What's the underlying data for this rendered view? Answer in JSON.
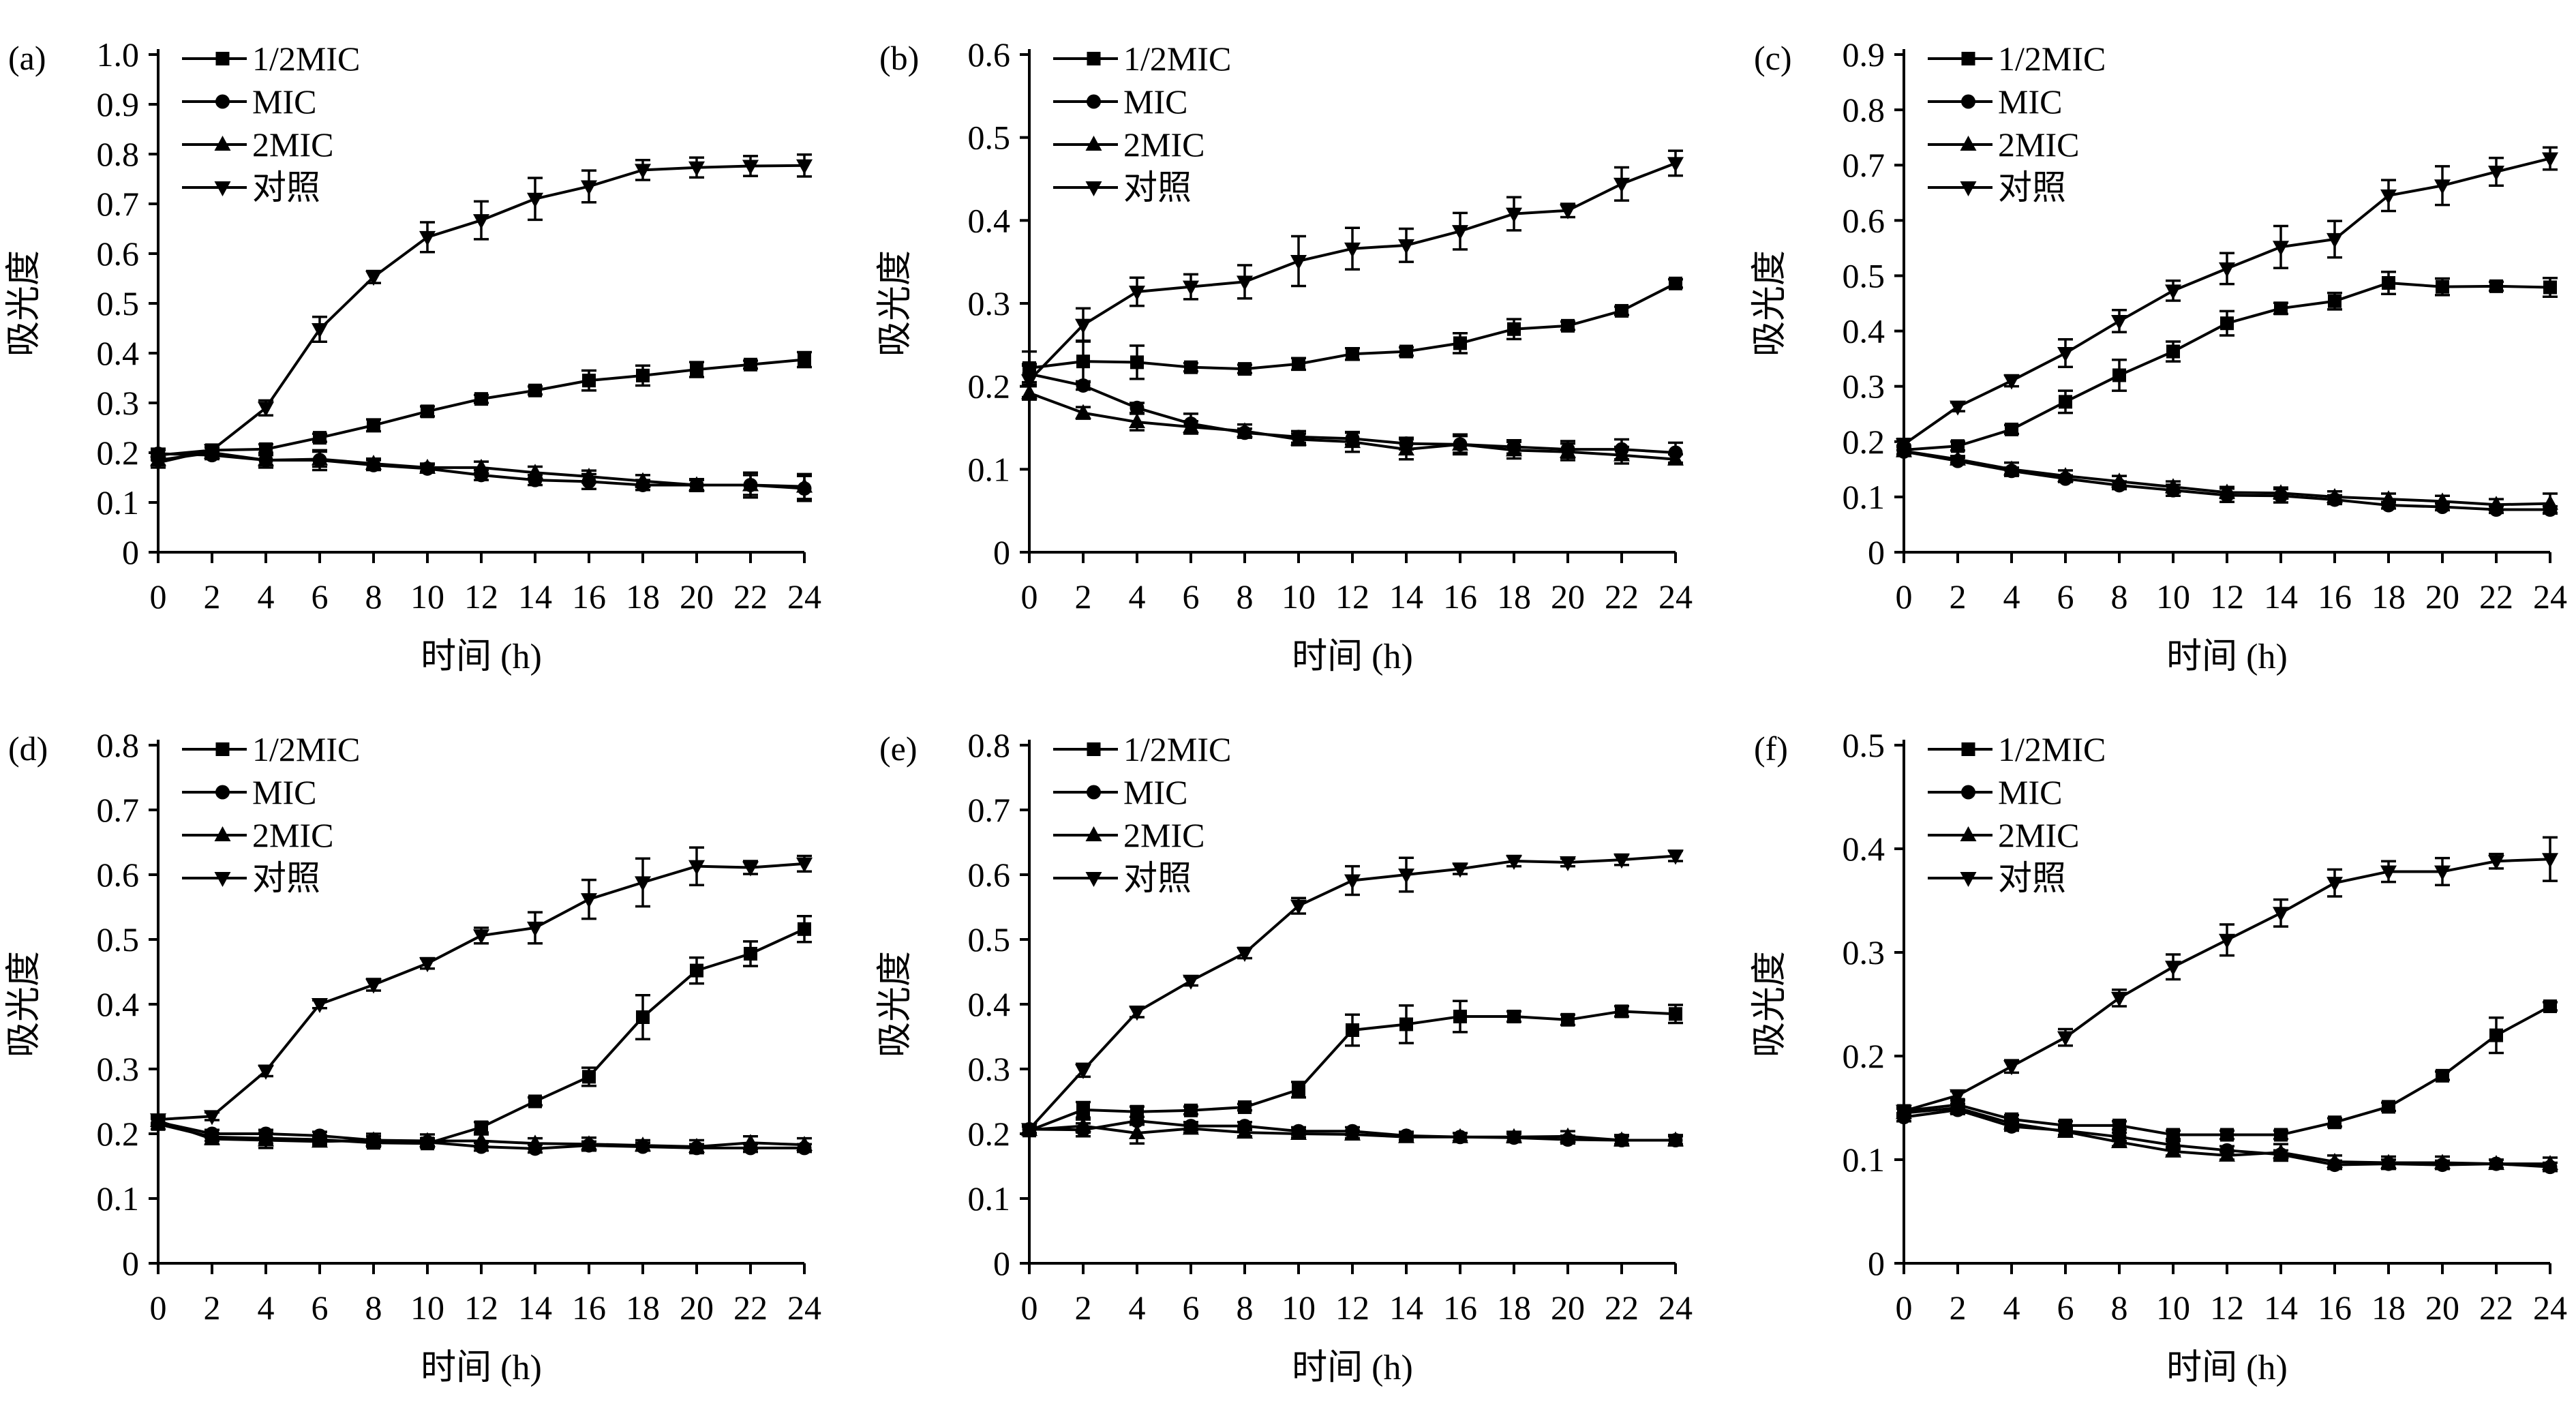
{
  "chart_data": [
    {
      "type": "line",
      "panel_label": "(a)",
      "xlabel": "时间 (h)",
      "ylabel": "吸光度",
      "x": [
        0,
        2,
        4,
        6,
        8,
        10,
        12,
        14,
        16,
        18,
        20,
        22,
        24
      ],
      "xticks": [
        "0",
        "2",
        "4",
        "6",
        "8",
        "10",
        "12",
        "14",
        "16",
        "18",
        "20",
        "22",
        "24"
      ],
      "ylim": [
        0,
        1.0
      ],
      "yticks": [
        "0",
        "0.1",
        "0.2",
        "0.3",
        "0.4",
        "0.5",
        "0.6",
        "0.7",
        "0.8",
        "0.9",
        "1.0"
      ],
      "legend_position": "top-left",
      "series": [
        {
          "name": "1/2MIC",
          "marker": "square",
          "values": [
            0.195,
            0.205,
            0.207,
            0.23,
            0.255,
            0.283,
            0.308,
            0.325,
            0.345,
            0.355,
            0.367,
            0.377,
            0.387
          ],
          "errors": [
            0.01,
            0.01,
            0.01,
            0.008,
            0.012,
            0.01,
            0.008,
            0.008,
            0.02,
            0.02,
            0.015,
            0.008,
            0.015
          ]
        },
        {
          "name": "MIC",
          "marker": "circle",
          "values": [
            0.198,
            0.195,
            0.185,
            0.185,
            0.175,
            0.168,
            0.155,
            0.145,
            0.142,
            0.135,
            0.135,
            0.135,
            0.128
          ],
          "errors": [
            0.01,
            0.008,
            0.015,
            0.02,
            0.01,
            0.008,
            0.01,
            0.01,
            0.015,
            0.01,
            0.01,
            0.02,
            0.025
          ]
        },
        {
          "name": "2MIC",
          "marker": "triangle-up",
          "values": [
            0.185,
            0.2,
            0.185,
            0.187,
            0.178,
            0.17,
            0.17,
            0.16,
            0.152,
            0.143,
            0.135,
            0.135,
            0.132
          ],
          "errors": [
            0.01,
            0.01,
            0.01,
            0.015,
            0.01,
            0.008,
            0.012,
            0.012,
            0.012,
            0.012,
            0.012,
            0.025,
            0.025
          ]
        },
        {
          "name": "对照",
          "marker": "triangle-down",
          "values": [
            0.18,
            0.205,
            0.29,
            0.448,
            0.553,
            0.633,
            0.667,
            0.71,
            0.735,
            0.768,
            0.773,
            0.776,
            0.777
          ],
          "errors": [
            0.01,
            0.01,
            0.015,
            0.025,
            0.012,
            0.03,
            0.038,
            0.042,
            0.032,
            0.02,
            0.02,
            0.02,
            0.022
          ]
        }
      ]
    },
    {
      "type": "line",
      "panel_label": "(b)",
      "xlabel": "时间 (h)",
      "ylabel": "吸光度",
      "x": [
        0,
        2,
        4,
        6,
        8,
        10,
        12,
        14,
        16,
        18,
        20,
        22,
        24
      ],
      "xticks": [
        "0",
        "2",
        "4",
        "6",
        "8",
        "10",
        "12",
        "14",
        "16",
        "18",
        "20",
        "22",
        "24"
      ],
      "ylim": [
        0,
        0.6
      ],
      "yticks": [
        "0",
        "0.1",
        "0.2",
        "0.3",
        "0.4",
        "0.5",
        "0.6"
      ],
      "legend_position": "top-left",
      "series": [
        {
          "name": "1/2MIC",
          "marker": "square",
          "values": [
            0.222,
            0.23,
            0.229,
            0.223,
            0.221,
            0.227,
            0.239,
            0.242,
            0.252,
            0.269,
            0.273,
            0.291,
            0.324
          ],
          "errors": [
            0.02,
            0.025,
            0.02,
            0.005,
            0.005,
            0.007,
            0.007,
            0.005,
            0.012,
            0.012,
            0.005,
            0.005,
            0.005
          ]
        },
        {
          "name": "MIC",
          "marker": "circle",
          "values": [
            0.215,
            0.201,
            0.174,
            0.155,
            0.144,
            0.139,
            0.137,
            0.131,
            0.13,
            0.127,
            0.124,
            0.124,
            0.12
          ],
          "errors": [
            0.01,
            0.005,
            0.006,
            0.012,
            0.005,
            0.007,
            0.007,
            0.007,
            0.01,
            0.008,
            0.01,
            0.012,
            0.012
          ]
        },
        {
          "name": "2MIC",
          "marker": "triangle-up",
          "values": [
            0.192,
            0.168,
            0.157,
            0.151,
            0.146,
            0.136,
            0.133,
            0.124,
            0.13,
            0.123,
            0.121,
            0.117,
            0.112
          ],
          "errors": [
            0.008,
            0.007,
            0.01,
            0.007,
            0.008,
            0.007,
            0.012,
            0.012,
            0.012,
            0.01,
            0.01,
            0.01,
            0.006
          ]
        },
        {
          "name": "对照",
          "marker": "triangle-down",
          "values": [
            0.207,
            0.274,
            0.314,
            0.32,
            0.326,
            0.351,
            0.366,
            0.37,
            0.387,
            0.408,
            0.412,
            0.444,
            0.469
          ],
          "errors": [
            0.02,
            0.02,
            0.017,
            0.015,
            0.02,
            0.03,
            0.025,
            0.02,
            0.022,
            0.02,
            0.008,
            0.02,
            0.015
          ]
        }
      ]
    },
    {
      "type": "line",
      "panel_label": "(c)",
      "xlabel": "时间 (h)",
      "ylabel": "吸光度",
      "x": [
        0,
        2,
        4,
        6,
        8,
        10,
        12,
        14,
        16,
        18,
        20,
        22,
        24
      ],
      "xticks": [
        "0",
        "2",
        "4",
        "6",
        "8",
        "10",
        "12",
        "14",
        "16",
        "18",
        "20",
        "22",
        "24"
      ],
      "ylim": [
        0,
        0.9
      ],
      "yticks": [
        "0",
        "0.1",
        "0.2",
        "0.3",
        "0.4",
        "0.5",
        "0.6",
        "0.7",
        "0.8",
        "0.9"
      ],
      "legend_position": "top-left",
      "series": [
        {
          "name": "1/2MIC",
          "marker": "square",
          "values": [
            0.185,
            0.192,
            0.222,
            0.272,
            0.32,
            0.363,
            0.414,
            0.441,
            0.454,
            0.487,
            0.48,
            0.481,
            0.479
          ],
          "errors": [
            0.008,
            0.008,
            0.008,
            0.02,
            0.028,
            0.018,
            0.022,
            0.01,
            0.015,
            0.02,
            0.015,
            0.008,
            0.017
          ]
        },
        {
          "name": "MIC",
          "marker": "circle",
          "values": [
            0.182,
            0.165,
            0.147,
            0.133,
            0.121,
            0.112,
            0.103,
            0.102,
            0.095,
            0.085,
            0.082,
            0.077,
            0.077
          ],
          "errors": [
            0.008,
            0.006,
            0.006,
            0.006,
            0.007,
            0.01,
            0.012,
            0.012,
            0.008,
            0.006,
            0.006,
            0.006,
            0.006
          ]
        },
        {
          "name": "2MIC",
          "marker": "triangle-up",
          "values": [
            0.183,
            0.168,
            0.15,
            0.138,
            0.128,
            0.118,
            0.108,
            0.107,
            0.1,
            0.096,
            0.092,
            0.086,
            0.088
          ],
          "errors": [
            0.008,
            0.006,
            0.012,
            0.01,
            0.01,
            0.01,
            0.01,
            0.01,
            0.01,
            0.01,
            0.01,
            0.01,
            0.018
          ]
        },
        {
          "name": "对照",
          "marker": "triangle-down",
          "values": [
            0.195,
            0.263,
            0.31,
            0.36,
            0.418,
            0.473,
            0.513,
            0.552,
            0.566,
            0.645,
            0.663,
            0.688,
            0.712
          ],
          "errors": [
            0.01,
            0.008,
            0.01,
            0.025,
            0.02,
            0.018,
            0.028,
            0.038,
            0.033,
            0.028,
            0.035,
            0.025,
            0.02
          ]
        }
      ]
    },
    {
      "type": "line",
      "panel_label": "(d)",
      "xlabel": "时间 (h)",
      "ylabel": "吸光度",
      "x": [
        0,
        2,
        4,
        6,
        8,
        10,
        12,
        14,
        16,
        18,
        20,
        22,
        24
      ],
      "xticks": [
        "0",
        "2",
        "4",
        "6",
        "8",
        "10",
        "12",
        "14",
        "16",
        "18",
        "20",
        "22",
        "24"
      ],
      "ylim": [
        0,
        0.8
      ],
      "yticks": [
        "0",
        "0.1",
        "0.2",
        "0.3",
        "0.4",
        "0.5",
        "0.6",
        "0.7",
        "0.8"
      ],
      "legend_position": "top-left",
      "series": [
        {
          "name": "1/2MIC",
          "marker": "square",
          "values": [
            0.215,
            0.195,
            0.193,
            0.191,
            0.186,
            0.185,
            0.21,
            0.25,
            0.288,
            0.38,
            0.452,
            0.478,
            0.516
          ],
          "errors": [
            0.008,
            0.006,
            0.008,
            0.006,
            0.006,
            0.006,
            0.008,
            0.006,
            0.014,
            0.034,
            0.02,
            0.019,
            0.02
          ]
        },
        {
          "name": "MIC",
          "marker": "circle",
          "values": [
            0.218,
            0.2,
            0.2,
            0.197,
            0.19,
            0.187,
            0.18,
            0.177,
            0.182,
            0.18,
            0.178,
            0.178,
            0.178
          ],
          "errors": [
            0.006,
            0.006,
            0.006,
            0.006,
            0.006,
            0.006,
            0.006,
            0.006,
            0.006,
            0.006,
            0.006,
            0.006,
            0.006
          ]
        },
        {
          "name": "2MIC",
          "marker": "triangle-up",
          "values": [
            0.22,
            0.192,
            0.19,
            0.188,
            0.19,
            0.189,
            0.189,
            0.185,
            0.184,
            0.182,
            0.18,
            0.186,
            0.183
          ],
          "errors": [
            0.006,
            0.008,
            0.012,
            0.006,
            0.01,
            0.01,
            0.01,
            0.008,
            0.01,
            0.008,
            0.01,
            0.01,
            0.01
          ]
        },
        {
          "name": "对照",
          "marker": "triangle-down",
          "values": [
            0.222,
            0.227,
            0.297,
            0.4,
            0.43,
            0.463,
            0.506,
            0.518,
            0.562,
            0.588,
            0.613,
            0.611,
            0.617
          ],
          "errors": [
            0.006,
            0.006,
            0.008,
            0.006,
            0.009,
            0.008,
            0.012,
            0.024,
            0.03,
            0.037,
            0.029,
            0.01,
            0.012
          ]
        }
      ]
    },
    {
      "type": "line",
      "panel_label": "(e)",
      "xlabel": "时间 (h)",
      "ylabel": "吸光度",
      "x": [
        0,
        2,
        4,
        6,
        8,
        10,
        12,
        14,
        16,
        18,
        20,
        22,
        24
      ],
      "xticks": [
        "0",
        "2",
        "4",
        "6",
        "8",
        "10",
        "12",
        "14",
        "16",
        "18",
        "20",
        "22",
        "24"
      ],
      "ylim": [
        0,
        0.8
      ],
      "yticks": [
        "0",
        "0.1",
        "0.2",
        "0.3",
        "0.4",
        "0.5",
        "0.6",
        "0.7",
        "0.8"
      ],
      "legend_position": "top-left",
      "series": [
        {
          "name": "1/2MIC",
          "marker": "square",
          "values": [
            0.205,
            0.237,
            0.234,
            0.236,
            0.241,
            0.268,
            0.36,
            0.369,
            0.381,
            0.381,
            0.376,
            0.389,
            0.385
          ],
          "errors": [
            0.006,
            0.012,
            0.008,
            0.006,
            0.005,
            0.012,
            0.024,
            0.029,
            0.024,
            0.008,
            0.008,
            0.008,
            0.014
          ]
        },
        {
          "name": "MIC",
          "marker": "circle",
          "values": [
            0.207,
            0.206,
            0.22,
            0.212,
            0.212,
            0.204,
            0.204,
            0.197,
            0.195,
            0.194,
            0.191,
            0.19,
            0.19
          ],
          "errors": [
            0.006,
            0.01,
            0.006,
            0.006,
            0.006,
            0.006,
            0.006,
            0.006,
            0.006,
            0.006,
            0.006,
            0.006,
            0.006
          ]
        },
        {
          "name": "2MIC",
          "marker": "triangle-up",
          "values": [
            0.206,
            0.212,
            0.201,
            0.208,
            0.202,
            0.2,
            0.199,
            0.195,
            0.195,
            0.195,
            0.196,
            0.19,
            0.19
          ],
          "errors": [
            0.006,
            0.01,
            0.016,
            0.006,
            0.006,
            0.006,
            0.006,
            0.006,
            0.006,
            0.008,
            0.008,
            0.008,
            0.008
          ]
        },
        {
          "name": "对照",
          "marker": "triangle-down",
          "values": [
            0.207,
            0.298,
            0.388,
            0.436,
            0.479,
            0.552,
            0.591,
            0.6,
            0.609,
            0.621,
            0.619,
            0.623,
            0.629
          ],
          "errors": [
            0.006,
            0.01,
            0.008,
            0.007,
            0.008,
            0.012,
            0.022,
            0.026,
            0.008,
            0.008,
            0.006,
            0.008,
            0.008
          ]
        }
      ]
    },
    {
      "type": "line",
      "panel_label": "(f)",
      "xlabel": "时间 (h)",
      "ylabel": "吸光度",
      "x": [
        0,
        2,
        4,
        6,
        8,
        10,
        12,
        14,
        16,
        18,
        20,
        22,
        24
      ],
      "xticks": [
        "0",
        "2",
        "4",
        "6",
        "8",
        "10",
        "12",
        "14",
        "16",
        "18",
        "20",
        "22",
        "24"
      ],
      "ylim": [
        0,
        0.5
      ],
      "yticks": [
        "0",
        "0.1",
        "0.2",
        "0.3",
        "0.4",
        "0.5"
      ],
      "legend_position": "top-left",
      "series": [
        {
          "name": "1/2MIC",
          "marker": "square",
          "values": [
            0.147,
            0.153,
            0.139,
            0.133,
            0.133,
            0.124,
            0.124,
            0.124,
            0.136,
            0.151,
            0.181,
            0.22,
            0.248
          ],
          "errors": [
            0.004,
            0.004,
            0.004,
            0.004,
            0.004,
            0.004,
            0.004,
            0.004,
            0.004,
            0.004,
            0.004,
            0.017,
            0.004
          ]
        },
        {
          "name": "MIC",
          "marker": "circle",
          "values": [
            0.141,
            0.148,
            0.132,
            0.128,
            0.122,
            0.114,
            0.109,
            0.105,
            0.095,
            0.096,
            0.095,
            0.096,
            0.093
          ],
          "errors": [
            0.004,
            0.004,
            0.004,
            0.004,
            0.004,
            0.004,
            0.004,
            0.004,
            0.004,
            0.004,
            0.004,
            0.004,
            0.004
          ]
        },
        {
          "name": "2MIC",
          "marker": "triangle-up",
          "values": [
            0.145,
            0.15,
            0.135,
            0.127,
            0.117,
            0.108,
            0.104,
            0.107,
            0.098,
            0.097,
            0.097,
            0.096,
            0.096
          ],
          "errors": [
            0.004,
            0.004,
            0.004,
            0.004,
            0.004,
            0.004,
            0.004,
            0.008,
            0.006,
            0.006,
            0.006,
            0.004,
            0.006
          ]
        },
        {
          "name": "对照",
          "marker": "triangle-down",
          "values": [
            0.147,
            0.162,
            0.19,
            0.218,
            0.256,
            0.286,
            0.312,
            0.338,
            0.367,
            0.378,
            0.378,
            0.388,
            0.39
          ],
          "errors": [
            0.004,
            0.004,
            0.006,
            0.008,
            0.008,
            0.012,
            0.015,
            0.013,
            0.013,
            0.01,
            0.013,
            0.007,
            0.021
          ]
        }
      ]
    }
  ]
}
